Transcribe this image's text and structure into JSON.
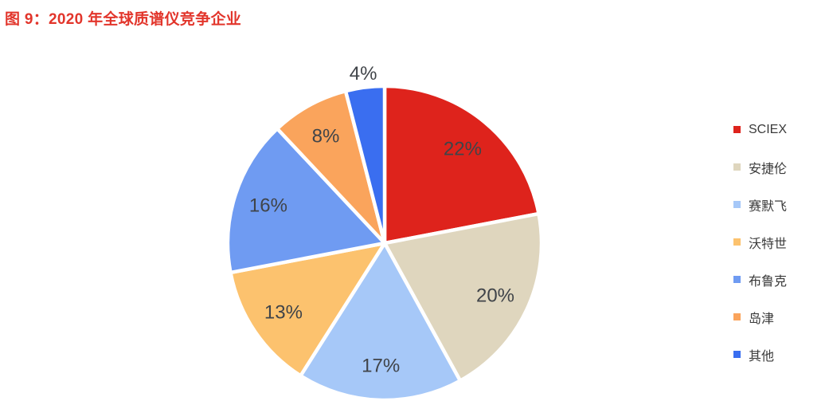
{
  "title": "图 9：2020 年全球质谱仪竞争企业",
  "chart_data": {
    "type": "pie",
    "title": "2020 年全球质谱仪竞争企业",
    "start_angle_deg": 0,
    "direction": "clockwise",
    "legend_position": "right",
    "total": 100,
    "slices": [
      {
        "label": "SCIEX",
        "value": 22,
        "pct_label": "22%",
        "color": "#de231c",
        "label_placement": "inside"
      },
      {
        "label": "安捷伦",
        "value": 20,
        "pct_label": "20%",
        "color": "#dfd6be",
        "label_placement": "inside"
      },
      {
        "label": "赛默飞",
        "value": 17,
        "pct_label": "17%",
        "color": "#a6c8f8",
        "label_placement": "inside"
      },
      {
        "label": "沃特世",
        "value": 13,
        "pct_label": "13%",
        "color": "#fcc26e",
        "label_placement": "inside"
      },
      {
        "label": "布鲁克",
        "value": 16,
        "pct_label": "16%",
        "color": "#6f9bf2",
        "label_placement": "inside"
      },
      {
        "label": "岛津",
        "value": 8,
        "pct_label": "8%",
        "color": "#faa45c",
        "label_placement": "inside"
      },
      {
        "label": "其他",
        "value": 4,
        "pct_label": "4%",
        "color": "#3a6ef0",
        "label_placement": "outside"
      }
    ]
  },
  "colors": {
    "title_red": "#e2352b",
    "value_label_text": "#404449",
    "legend_text": "#3a3a3a",
    "background": "#ffffff",
    "slice_border": "#ffffff"
  }
}
